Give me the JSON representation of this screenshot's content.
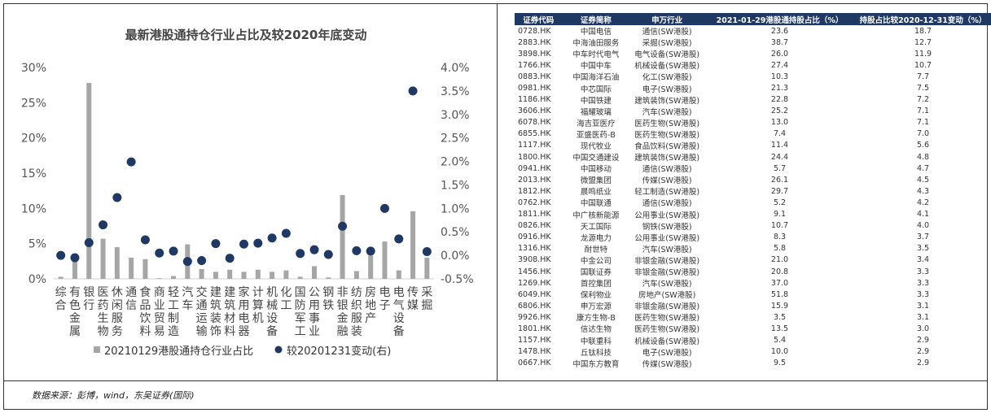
{
  "chart_data": {
    "type": "bar+scatter",
    "title": "最新港股通持仓行业占比及较2020年底变动",
    "categories": [
      [
        "综",
        "合"
      ],
      [
        "有",
        "色",
        "金",
        "属"
      ],
      [
        "银",
        "行"
      ],
      [
        "医",
        "药",
        "生",
        "物"
      ],
      [
        "休",
        "闲",
        "服",
        "务"
      ],
      [
        "通",
        "信"
      ],
      [
        "食",
        "品",
        "饮",
        "料"
      ],
      [
        "商",
        "业",
        "贸",
        "易"
      ],
      [
        "轻",
        "工",
        "制",
        "造"
      ],
      [
        "汽",
        "车"
      ],
      [
        "交",
        "通",
        "运",
        "输"
      ],
      [
        "建",
        "筑",
        "装",
        "饰"
      ],
      [
        "建",
        "筑",
        "材",
        "料"
      ],
      [
        "家",
        "用",
        "电",
        "器"
      ],
      [
        "计",
        "算",
        "机"
      ],
      [
        "机",
        "械",
        "设",
        "备"
      ],
      [
        "化",
        "工"
      ],
      [
        "国",
        "防",
        "军",
        "工"
      ],
      [
        "公",
        "用",
        "事",
        "业"
      ],
      [
        "钢",
        "铁"
      ],
      [
        "非",
        "银",
        "金",
        "融"
      ],
      [
        "纺",
        "织",
        "服",
        "装"
      ],
      [
        "房",
        "地",
        "产"
      ],
      [
        "电",
        "子"
      ],
      [
        "电",
        "气",
        "设",
        "备"
      ],
      [
        "传",
        "媒"
      ],
      [
        "采",
        "掘"
      ]
    ],
    "series": [
      {
        "name": "20210129港股通持仓行业占比",
        "kind": "bar",
        "axis": "left",
        "color": "#a6a6a6",
        "values": [
          0.3,
          2.5,
          27.8,
          5.7,
          4.5,
          3.0,
          2.8,
          0.1,
          0.4,
          4.9,
          1.4,
          1.0,
          1.3,
          1.0,
          1.3,
          1.0,
          1.2,
          0.3,
          1.8,
          0.2,
          11.9,
          1.1,
          3.3,
          5.3,
          1.2,
          9.6,
          3.0
        ]
      },
      {
        "name": "较20201231变动(右)",
        "kind": "dot",
        "axis": "right",
        "color": "#1f3864",
        "values": [
          0.0,
          -0.05,
          0.27,
          0.65,
          1.23,
          1.99,
          0.33,
          0.05,
          0.09,
          -0.13,
          -0.11,
          0.25,
          -0.06,
          0.24,
          0.26,
          0.37,
          0.47,
          0.04,
          0.12,
          0.02,
          0.62,
          0.1,
          0.09,
          1.0,
          0.35,
          3.5,
          0.08
        ]
      }
    ],
    "y_left": {
      "min": 0,
      "max": 30,
      "step": 5,
      "ticks": [
        "0%",
        "5%",
        "10%",
        "15%",
        "20%",
        "25%",
        "30%"
      ]
    },
    "y_right": {
      "min": -0.5,
      "max": 4.0,
      "step": 0.5,
      "ticks": [
        "-0.5%",
        "0.0%",
        "0.5%",
        "1.0%",
        "1.5%",
        "2.0%",
        "2.5%",
        "3.0%",
        "3.5%",
        "4.0%"
      ]
    },
    "legend": [
      "20210129港股通持仓行业占比",
      "较20201231变动(右)"
    ],
    "legend_position": "bottom"
  },
  "table": {
    "headers": [
      "证券代码",
      "证券简称",
      "申万行业",
      "2021-01-29港股通持股占比（%）",
      "持股占比较2020-12-31变动（%）"
    ],
    "rows": [
      [
        "0728.HK",
        "中国电信",
        "通信(SW港股)",
        "23.6",
        "18.7"
      ],
      [
        "2883.HK",
        "中海油田服务",
        "采掘(SW港股)",
        "38.7",
        "12.7"
      ],
      [
        "3898.HK",
        "中车时代电气",
        "电气设备(SW港股)",
        "26.0",
        "11.9"
      ],
      [
        "1766.HK",
        "中国中车",
        "机械设备(SW港股)",
        "27.4",
        "10.7"
      ],
      [
        "0883.HK",
        "中国海洋石油",
        "化工(SW港股)",
        "10.3",
        "7.7"
      ],
      [
        "0981.HK",
        "中芯国际",
        "电子(SW港股)",
        "21.3",
        "7.5"
      ],
      [
        "1186.HK",
        "中国铁建",
        "建筑装饰(SW港股)",
        "22.8",
        "7.2"
      ],
      [
        "3606.HK",
        "福耀玻璃",
        "汽车(SW港股)",
        "25.2",
        "7.1"
      ],
      [
        "6078.HK",
        "海吉亚医疗",
        "医药生物(SW港股)",
        "13.0",
        "7.1"
      ],
      [
        "6855.HK",
        "亚盛医药-B",
        "医药生物(SW港股)",
        "7.4",
        "7.0"
      ],
      [
        "1117.HK",
        "现代牧业",
        "食品饮料(SW港股)",
        "11.4",
        "5.6"
      ],
      [
        "1800.HK",
        "中国交通建设",
        "建筑装饰(SW港股)",
        "24.4",
        "4.8"
      ],
      [
        "0941.HK",
        "中国移动",
        "通信(SW港股)",
        "5.7",
        "4.7"
      ],
      [
        "2013.HK",
        "微盟集团",
        "传媒(SW港股)",
        "26.1",
        "4.5"
      ],
      [
        "1812.HK",
        "晨鸣纸业",
        "轻工制造(SW港股)",
        "29.7",
        "4.3"
      ],
      [
        "0762.HK",
        "中国联通",
        "通信(SW港股)",
        "5.2",
        "4.2"
      ],
      [
        "1811.HK",
        "中广核新能源",
        "公用事业(SW港股)",
        "9.1",
        "4.1"
      ],
      [
        "0826.HK",
        "天工国际",
        "钢铁(SW港股)",
        "10.7",
        "4.0"
      ],
      [
        "0916.HK",
        "龙源电力",
        "公用事业(SW港股)",
        "8.3",
        "3.7"
      ],
      [
        "1316.HK",
        "耐世特",
        "汽车(SW港股)",
        "5.8",
        "3.5"
      ],
      [
        "3908.HK",
        "中金公司",
        "非银金融(SW港股)",
        "21.0",
        "3.4"
      ],
      [
        "1456.HK",
        "国联证券",
        "非银金融(SW港股)",
        "20.8",
        "3.3"
      ],
      [
        "1269.HK",
        "首控集团",
        "汽车(SW港股)",
        "37.0",
        "3.3"
      ],
      [
        "6049.HK",
        "保利物业",
        "房地产(SW港股)",
        "51.8",
        "3.3"
      ],
      [
        "6806.HK",
        "申万宏源",
        "非银金融(SW港股)",
        "15.9",
        "3.1"
      ],
      [
        "9926.HK",
        "康方生物-B",
        "医药生物(SW港股)",
        "3.5",
        "3.1"
      ],
      [
        "1801.HK",
        "信达生物",
        "医药生物(SW港股)",
        "13.5",
        "3.0"
      ],
      [
        "1157.HK",
        "中联重科",
        "机械设备(SW港股)",
        "5.4",
        "2.9"
      ],
      [
        "1478.HK",
        "丘钛科技",
        "电子(SW港股)",
        "10.0",
        "2.9"
      ],
      [
        "0667.HK",
        "中国东方教育",
        "传媒(SW港股)",
        "9.5",
        "2.9"
      ]
    ]
  },
  "source": "数据来源：彭博，wind，东吴证券(国际)"
}
